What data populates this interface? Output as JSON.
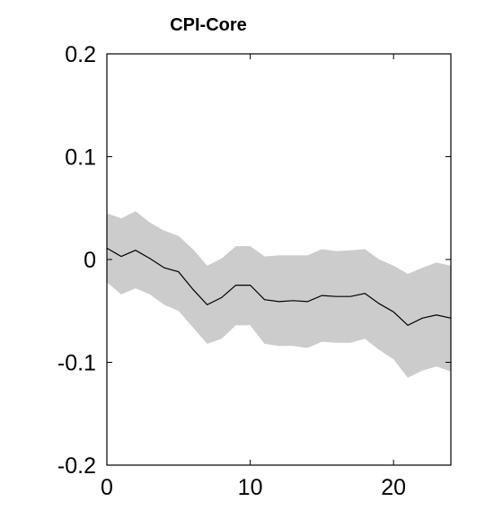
{
  "chart_data": {
    "type": "area",
    "title": "CPI-Core",
    "xlabel": "",
    "ylabel": "",
    "xlim": [
      0,
      24
    ],
    "ylim": [
      -0.2,
      0.2
    ],
    "xticks": [
      0,
      10,
      20
    ],
    "xtick_labels": [
      "0",
      "10",
      "20"
    ],
    "yticks": [
      0.2,
      0.1,
      0,
      -0.1,
      -0.2
    ],
    "ytick_labels": [
      "0.2",
      "0.1",
      "0",
      "-0.1",
      "-0.2"
    ],
    "grid": false,
    "x": [
      0,
      1,
      2,
      3,
      4,
      5,
      6,
      7,
      8,
      9,
      10,
      11,
      12,
      13,
      14,
      15,
      16,
      17,
      18,
      19,
      20,
      21,
      22,
      23,
      24
    ],
    "series": [
      {
        "role": "median",
        "values": [
          0.011,
          0.003,
          0.009,
          0.001,
          -0.008,
          -0.012,
          -0.029,
          -0.044,
          -0.037,
          -0.025,
          -0.025,
          -0.039,
          -0.041,
          -0.04,
          -0.041,
          -0.035,
          -0.036,
          -0.036,
          -0.033,
          -0.043,
          -0.051,
          -0.064,
          -0.057,
          -0.054,
          -0.057
        ]
      },
      {
        "role": "upper",
        "values": [
          0.045,
          0.04,
          0.047,
          0.036,
          0.028,
          0.023,
          0.01,
          -0.006,
          0.001,
          0.013,
          0.013,
          0.003,
          0.004,
          0.004,
          0.004,
          0.01,
          0.008,
          0.009,
          0.01,
          0.0,
          -0.006,
          -0.014,
          -0.008,
          -0.003,
          -0.006
        ]
      },
      {
        "role": "lower",
        "values": [
          -0.022,
          -0.034,
          -0.028,
          -0.034,
          -0.044,
          -0.05,
          -0.066,
          -0.082,
          -0.077,
          -0.064,
          -0.064,
          -0.082,
          -0.084,
          -0.084,
          -0.086,
          -0.08,
          -0.081,
          -0.081,
          -0.077,
          -0.088,
          -0.097,
          -0.115,
          -0.108,
          -0.104,
          -0.109
        ]
      }
    ],
    "colors": {
      "band": "#cccccc",
      "line": "#000000",
      "axis": "#000000"
    }
  }
}
